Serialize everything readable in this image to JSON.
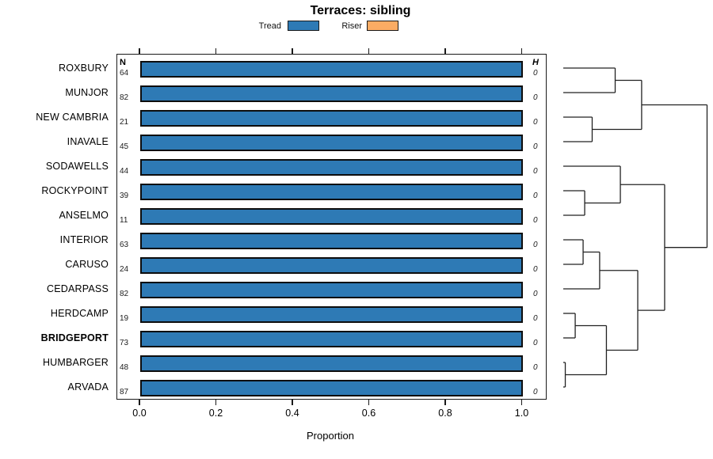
{
  "chart_data": {
    "type": "bar",
    "title": "Terraces: sibling",
    "xlabel": "Proportion",
    "xlim": [
      0,
      1
    ],
    "xtick_labels": [
      "0.0",
      "0.2",
      "0.4",
      "0.6",
      "0.8",
      "1.0"
    ],
    "grid": false,
    "legend_position": "top",
    "legend": [
      {
        "label": "Tread",
        "color": "#2E7AB5"
      },
      {
        "label": "Riser",
        "color": "#FBAC64"
      }
    ],
    "col_header_left": "N",
    "col_header_right": "H",
    "categories": [
      "ROXBURY",
      "MUNJOR",
      "NEW CAMBRIA",
      "INAVALE",
      "SODAWELLS",
      "ROCKYPOINT",
      "ANSELMO",
      "INTERIOR",
      "CARUSO",
      "CEDARPASS",
      "HERDCAMP",
      "BRIDGEPORT",
      "HUMBARGER",
      "ARVADA"
    ],
    "highlighted_category": "BRIDGEPORT",
    "n_values": [
      64,
      82,
      21,
      45,
      44,
      39,
      11,
      63,
      24,
      82,
      19,
      73,
      48,
      87
    ],
    "h_values": [
      "0",
      "0",
      "0",
      "0",
      "0",
      "0",
      "0",
      "0",
      "0",
      "0",
      "0",
      "0",
      "0",
      "0"
    ],
    "series": [
      {
        "name": "Tread",
        "color": "#2E7AB5",
        "values": [
          1,
          1,
          1,
          1,
          1,
          1,
          1,
          1,
          1,
          1,
          1,
          1,
          1,
          1
        ]
      },
      {
        "name": "Riser",
        "color": "#FBAC64",
        "values": [
          0,
          0,
          0,
          0,
          0,
          0,
          0,
          0,
          0,
          0,
          0,
          0,
          0,
          0
        ]
      }
    ],
    "dendrogram": {
      "orientation": "left-leaves",
      "merges": [
        {
          "a": "L0",
          "b": "L1",
          "h": 0.361
        },
        {
          "a": "L2",
          "b": "L3",
          "h": 0.201
        },
        {
          "a": "M0",
          "b": "M1",
          "h": 0.545
        },
        {
          "a": "L5",
          "b": "L6",
          "h": 0.149
        },
        {
          "a": "L4",
          "b": "M3",
          "h": 0.397
        },
        {
          "a": "L7",
          "b": "L8",
          "h": 0.138
        },
        {
          "a": "M5",
          "b": "L9",
          "h": 0.253
        },
        {
          "a": "L10",
          "b": "L11",
          "h": 0.083
        },
        {
          "a": "L12",
          "b": "L13",
          "h": 0.014
        },
        {
          "a": "M7",
          "b": "M8",
          "h": 0.3
        },
        {
          "a": "M6",
          "b": "M9",
          "h": 0.518
        },
        {
          "a": "M4",
          "b": "M10",
          "h": 0.705
        },
        {
          "a": "M2",
          "b": "M11",
          "h": 1.0
        }
      ]
    }
  }
}
